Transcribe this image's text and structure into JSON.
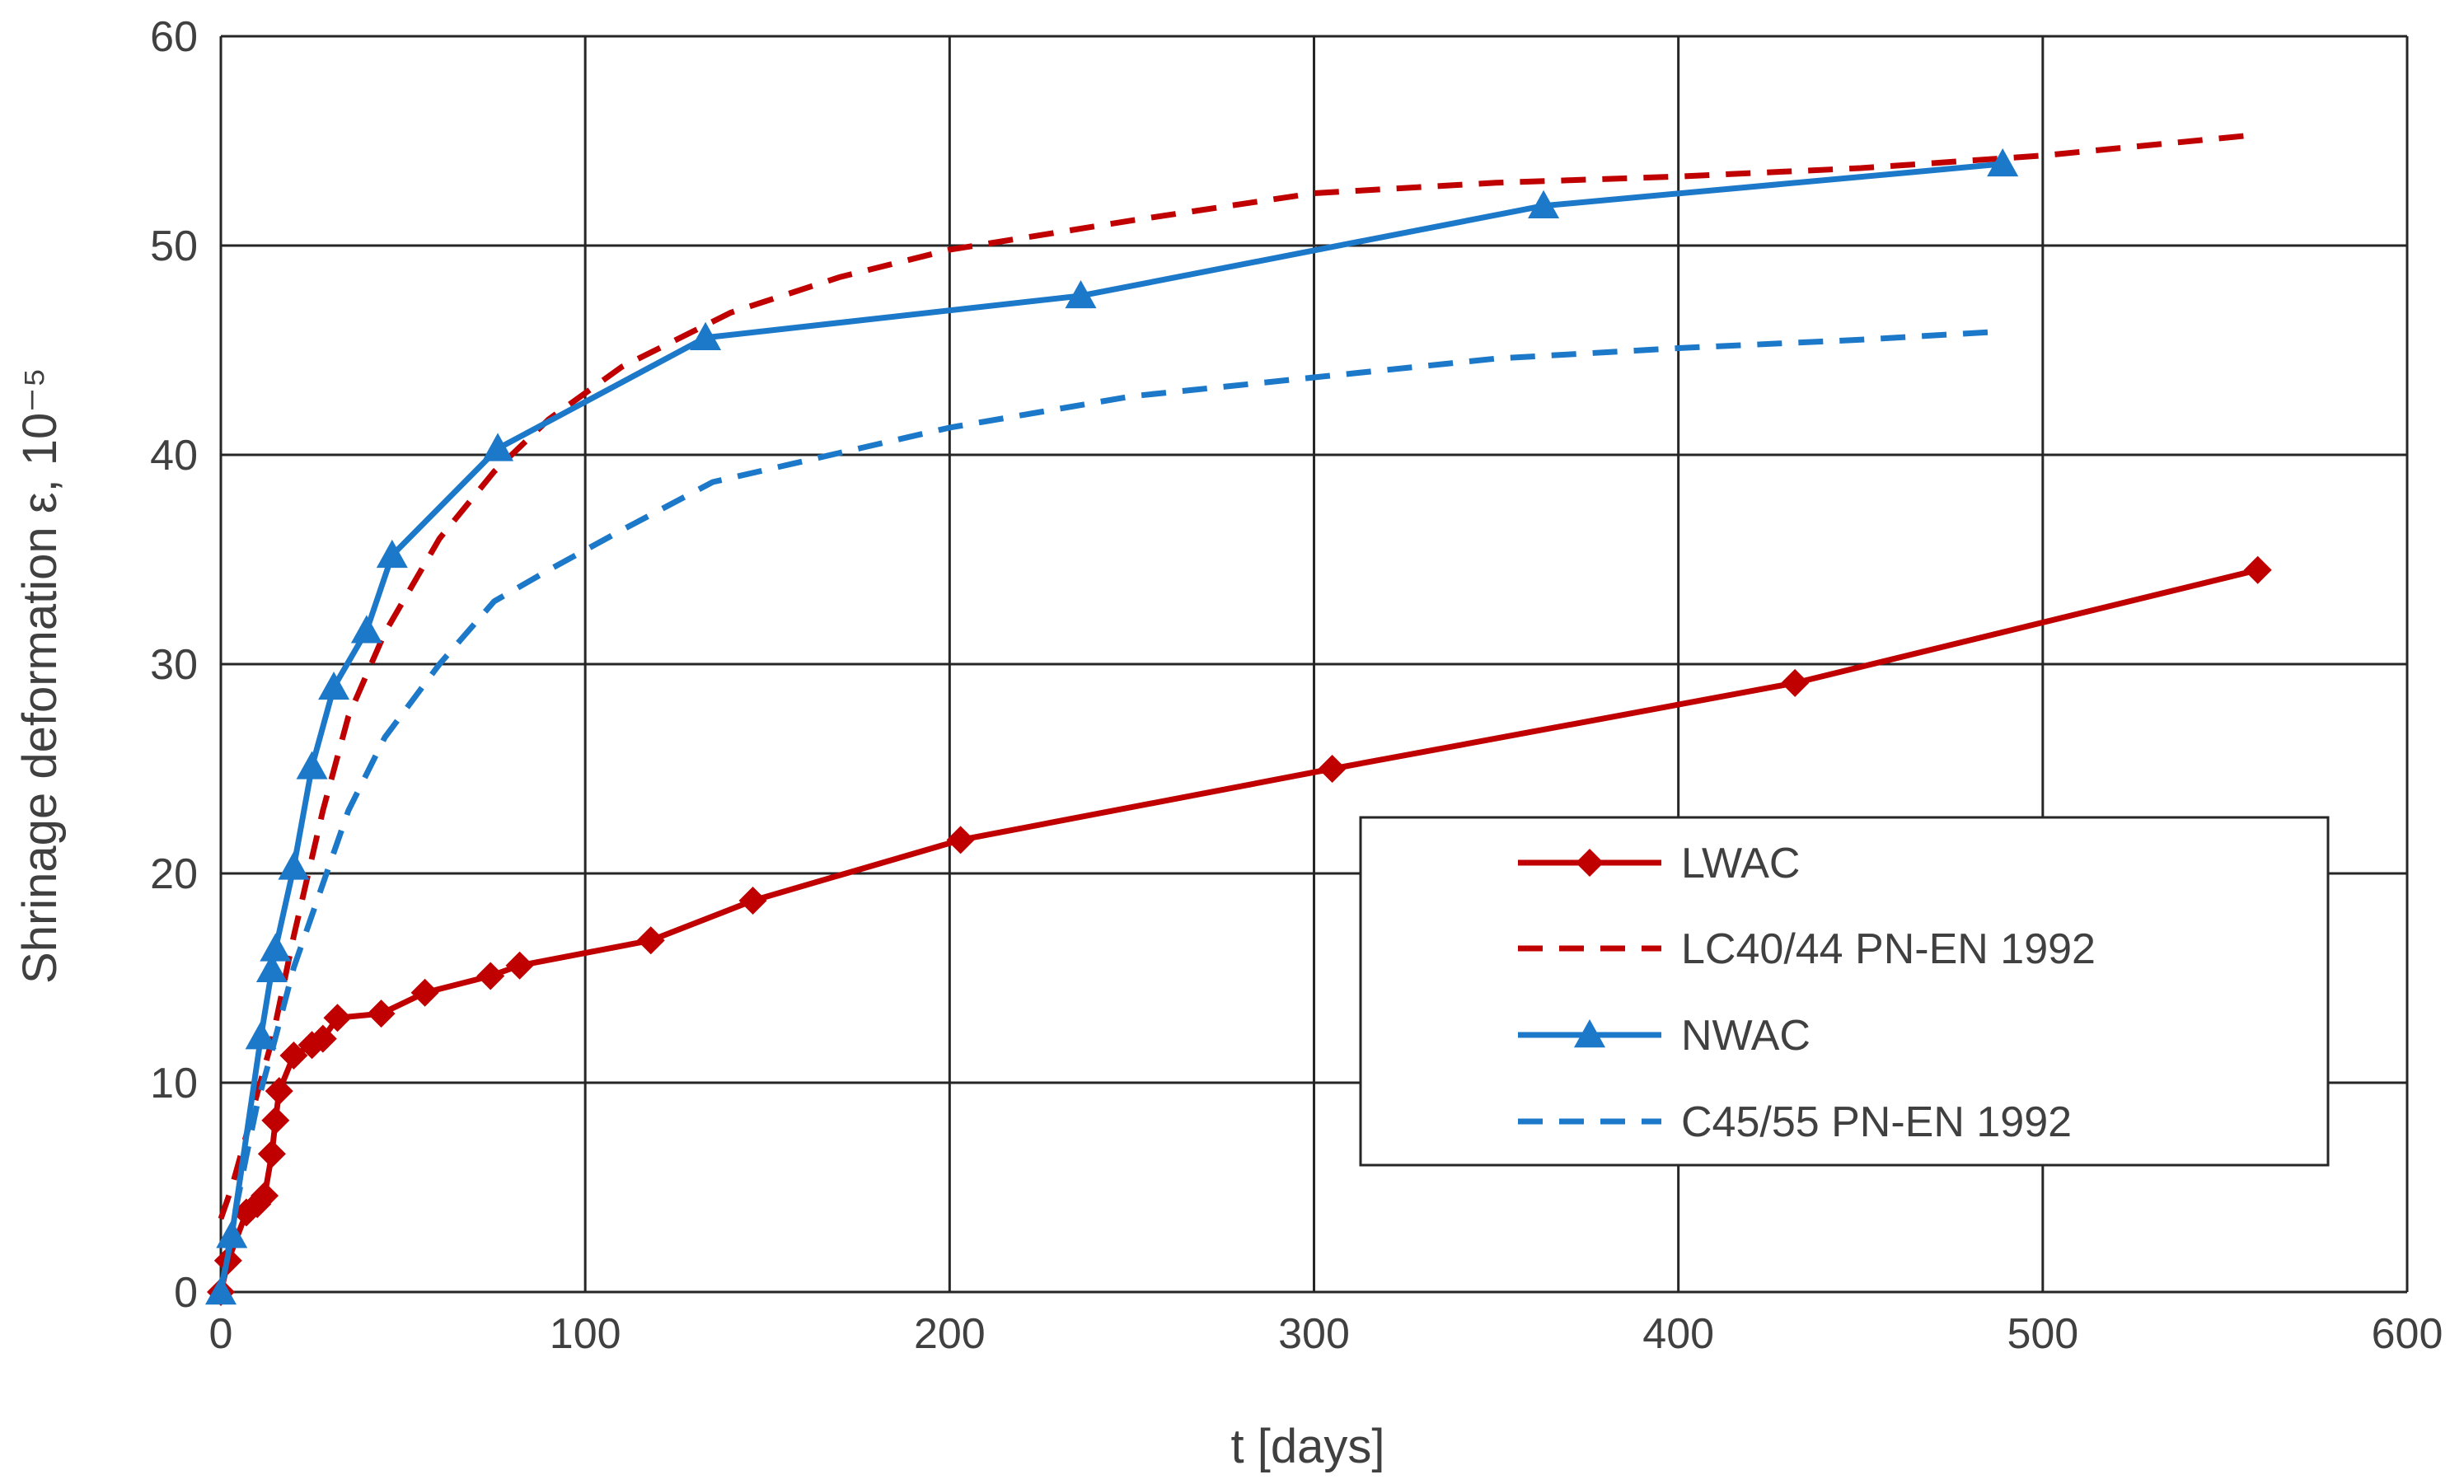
{
  "chart_data": {
    "type": "line",
    "title": "",
    "xlabel": "t [days]",
    "ylabel": "Shrinage deformation ε, 10⁻⁵",
    "xlim": [
      0,
      600
    ],
    "ylim": [
      0,
      60
    ],
    "xticks": [
      0,
      100,
      200,
      300,
      400,
      500,
      600
    ],
    "yticks": [
      0,
      10,
      20,
      30,
      40,
      50,
      60
    ],
    "xtick_labels": [
      "0",
      "100",
      "200",
      "300",
      "400",
      "500",
      "600"
    ],
    "ytick_labels": [
      "0",
      "10",
      "20",
      "30",
      "40",
      "50",
      "60"
    ],
    "grid": true,
    "legend_position": "center-right",
    "series": [
      {
        "name": "LWAC",
        "color": "#c00000",
        "style": "solid",
        "marker": "diamond",
        "x": [
          0,
          2,
          7,
          10,
          12,
          14,
          15,
          16,
          20,
          25,
          28,
          32,
          44,
          56,
          74,
          82,
          118,
          146,
          203,
          305,
          432,
          559
        ],
        "y": [
          0,
          1.5,
          3.8,
          4.2,
          4.6,
          6.6,
          8.2,
          9.6,
          11.3,
          11.8,
          12.1,
          13.1,
          13.3,
          14.3,
          15.1,
          15.6,
          16.8,
          18.7,
          21.6,
          25.0,
          29.1,
          34.5
        ]
      },
      {
        "name": "LC40/44 PN-EN 1992",
        "color": "#c00000",
        "style": "dashed",
        "marker": "none",
        "x": [
          0,
          3,
          7,
          10,
          14,
          20,
          28,
          35,
          45,
          60,
          75,
          90,
          110,
          140,
          170,
          200,
          250,
          300,
          350,
          400,
          450,
          500,
          559
        ],
        "y": [
          3.5,
          5,
          7.5,
          9.5,
          12,
          17,
          23,
          27.5,
          31.5,
          36,
          39.2,
          41.7,
          44.2,
          46.8,
          48.5,
          49.8,
          51.2,
          52.5,
          53,
          53.3,
          53.7,
          54.3,
          55.3
        ]
      },
      {
        "name": "NWAC",
        "color": "#1c78c8",
        "style": "solid",
        "marker": "triangle",
        "x": [
          0,
          3,
          11,
          14,
          15,
          20,
          25,
          31,
          40,
          47,
          76,
          133,
          236,
          363,
          489
        ],
        "y": [
          0,
          2.7,
          12.2,
          15.4,
          16.4,
          20.3,
          25.1,
          28.9,
          31.6,
          35.2,
          40.3,
          45.6,
          47.6,
          51.9,
          53.9
        ]
      },
      {
        "name": "C45/55 PN-EN 1992",
        "color": "#1c78c8",
        "style": "dashed",
        "marker": "none",
        "x": [
          0,
          3,
          7,
          10,
          14,
          20,
          28,
          35,
          45,
          60,
          75,
          90,
          110,
          135,
          160,
          200,
          250,
          300,
          350,
          400,
          450,
          489
        ],
        "y": [
          0,
          3,
          6.5,
          9,
          11.5,
          15.5,
          19.5,
          23,
          26.5,
          30,
          33,
          34.5,
          36.4,
          38.7,
          39.7,
          41.3,
          42.8,
          43.7,
          44.6,
          45.1,
          45.5,
          45.9
        ]
      }
    ]
  }
}
